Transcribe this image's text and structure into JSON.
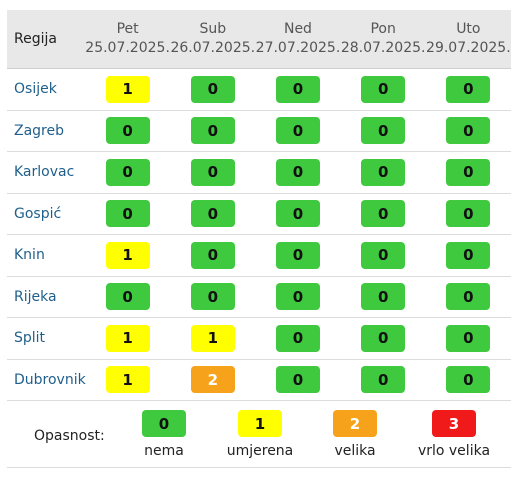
{
  "header": {
    "region_label": "Regija",
    "days": [
      {
        "name": "Pet",
        "date": "25.07.2025."
      },
      {
        "name": "Sub",
        "date": "26.07.2025."
      },
      {
        "name": "Ned",
        "date": "27.07.2025."
      },
      {
        "name": "Pon",
        "date": "28.07.2025."
      },
      {
        "name": "Uto",
        "date": "29.07.2025."
      }
    ]
  },
  "rows": [
    {
      "region": "Osijek",
      "levels": [
        "1",
        "0",
        "0",
        "0",
        "0"
      ]
    },
    {
      "region": "Zagreb",
      "levels": [
        "0",
        "0",
        "0",
        "0",
        "0"
      ]
    },
    {
      "region": "Karlovac",
      "levels": [
        "0",
        "0",
        "0",
        "0",
        "0"
      ]
    },
    {
      "region": "Gospić",
      "levels": [
        "0",
        "0",
        "0",
        "0",
        "0"
      ]
    },
    {
      "region": "Knin",
      "levels": [
        "1",
        "0",
        "0",
        "0",
        "0"
      ]
    },
    {
      "region": "Rijeka",
      "levels": [
        "0",
        "0",
        "0",
        "0",
        "0"
      ]
    },
    {
      "region": "Split",
      "levels": [
        "1",
        "1",
        "0",
        "0",
        "0"
      ]
    },
    {
      "region": "Dubrovnik",
      "levels": [
        "1",
        "2",
        "0",
        "0",
        "0"
      ]
    }
  ],
  "legend": {
    "title": "Opasnost:",
    "items": [
      {
        "value": "0",
        "label": "nema"
      },
      {
        "value": "1",
        "label": "umjerena"
      },
      {
        "value": "2",
        "label": "velika"
      },
      {
        "value": "3",
        "label": "vrlo velika"
      }
    ]
  },
  "colors": {
    "level_0": "#3ec93e",
    "level_1": "#ffff00",
    "level_2": "#f7a21b",
    "level_3": "#f01a1a",
    "region_link": "#1f5f8b",
    "header_bg": "#e8e8e8"
  }
}
